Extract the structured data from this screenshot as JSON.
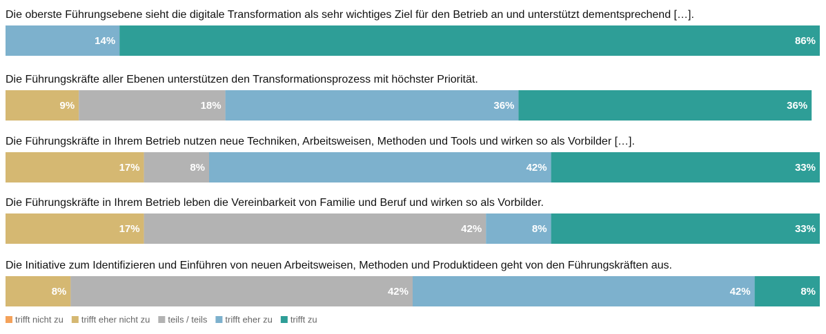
{
  "chart_data": {
    "type": "stacked-bar-horizontal",
    "categories": [
      "Die oberste Führungsebene sieht die digitale Transformation als sehr wichtiges Ziel für den Betrieb an und unterstützt dementsprechend […].",
      "Die Führungskräfte aller Ebenen unterstützen den Transformationsprozess mit höchster Priorität.",
      "Die Führungskräfte in Ihrem Betrieb nutzen neue Techniken, Arbeitsweisen, Methoden und Tools und wirken so als Vorbilder […].",
      "Die Führungskräfte in Ihrem Betrieb leben die Vereinbarkeit von Familie und Beruf und wirken so als Vorbilder.",
      "Die Initiative zum Identifizieren und Einführen von neuen Arbeitsweisen, Methoden und Produktideen geht von den Führungskräften aus."
    ],
    "series": [
      {
        "name": "trifft nicht zu",
        "color": "#f4a25a",
        "values": [
          0,
          0,
          0,
          0,
          0
        ],
        "value_labels": [
          null,
          null,
          null,
          null,
          null
        ]
      },
      {
        "name": "trifft eher nicht zu",
        "color": "#d5b872",
        "values": [
          0,
          9,
          17,
          17,
          8
        ],
        "value_labels": [
          null,
          "9%",
          "17%",
          "17%",
          "8%"
        ]
      },
      {
        "name": "teils / teils",
        "color": "#b3b3b3",
        "values": [
          0,
          18,
          8,
          42,
          42
        ],
        "value_labels": [
          null,
          "18%",
          "8%",
          "42%",
          "42%"
        ]
      },
      {
        "name": "trifft eher zu",
        "color": "#7db1cd",
        "values": [
          14,
          36,
          42,
          8,
          42
        ],
        "value_labels": [
          "14%",
          "36%",
          "42%",
          "8%",
          "42%"
        ]
      },
      {
        "name": "trifft zu",
        "color": "#2e9e97",
        "values": [
          86,
          36,
          33,
          33,
          8
        ],
        "value_labels": [
          "86%",
          "36%",
          "33%",
          "33%",
          "8%"
        ]
      }
    ],
    "xlim": [
      0,
      100
    ]
  }
}
